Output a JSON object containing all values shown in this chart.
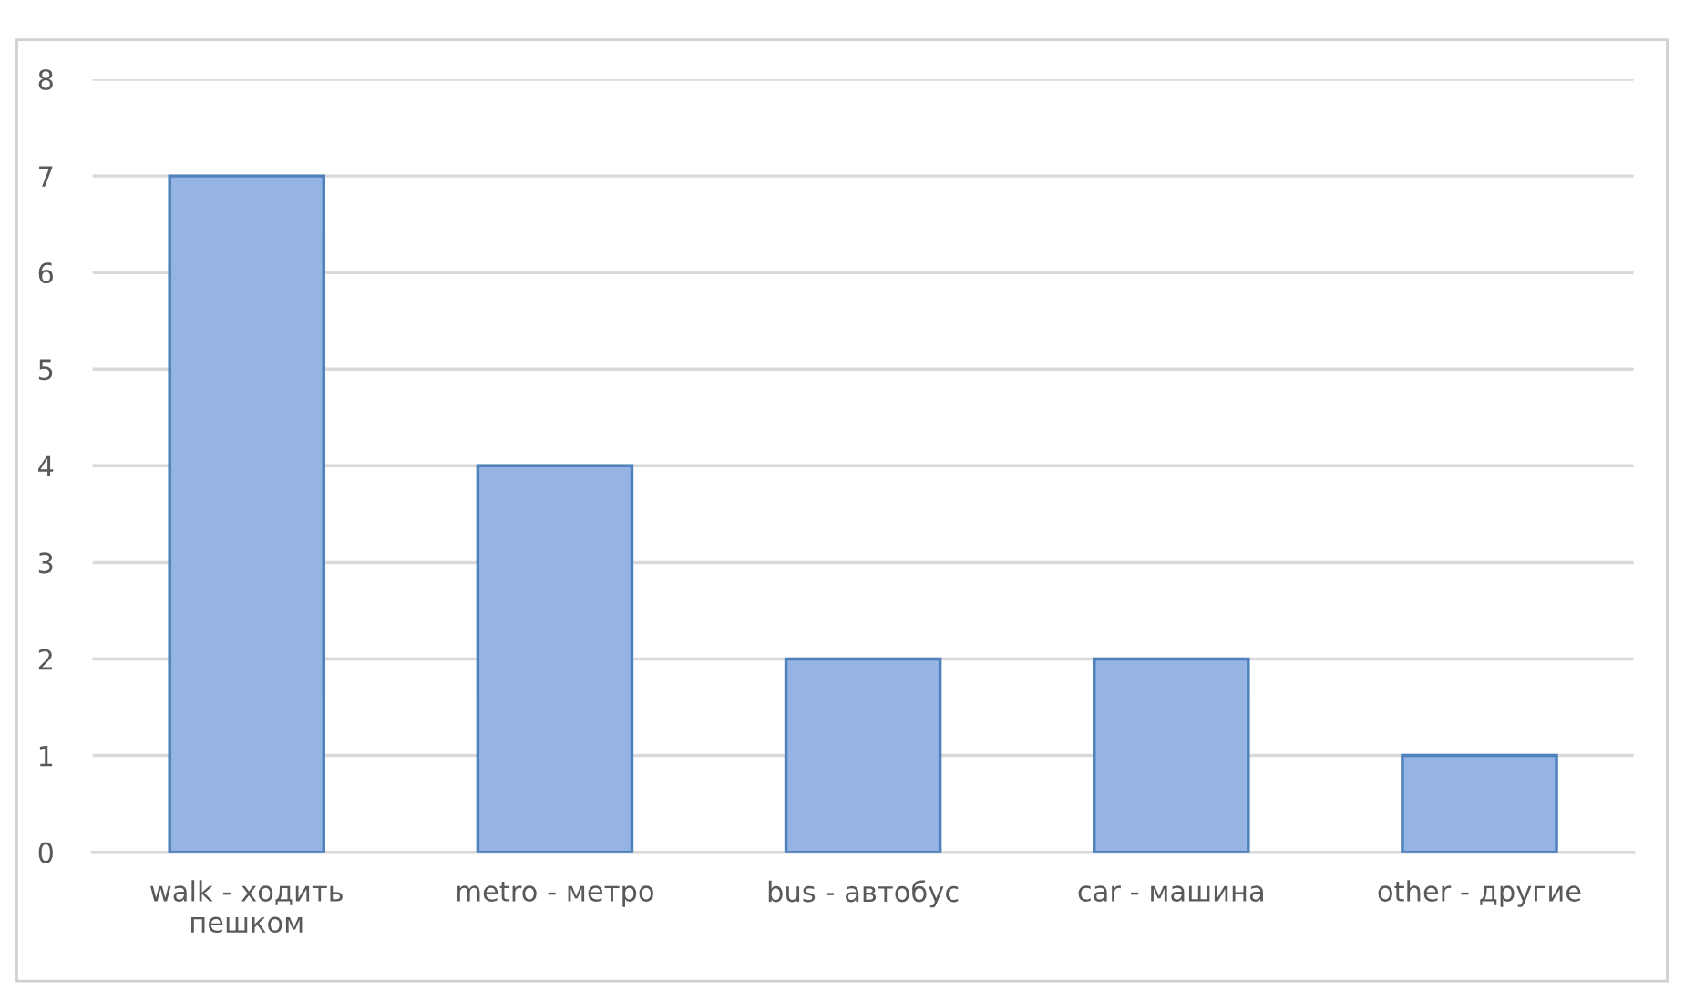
{
  "chart_data": {
    "type": "bar",
    "categories": [
      "walk - ходить\nпешком",
      "metro - метро",
      "bus - автобус",
      "car - машина",
      "other - другие"
    ],
    "values": [
      7,
      4,
      2,
      2,
      1
    ],
    "color": "#95b3e3",
    "ylim": [
      0,
      8
    ],
    "yticks": [
      0,
      1,
      2,
      3,
      4,
      5,
      6,
      7,
      8
    ],
    "grid": "y",
    "legend": false
  }
}
